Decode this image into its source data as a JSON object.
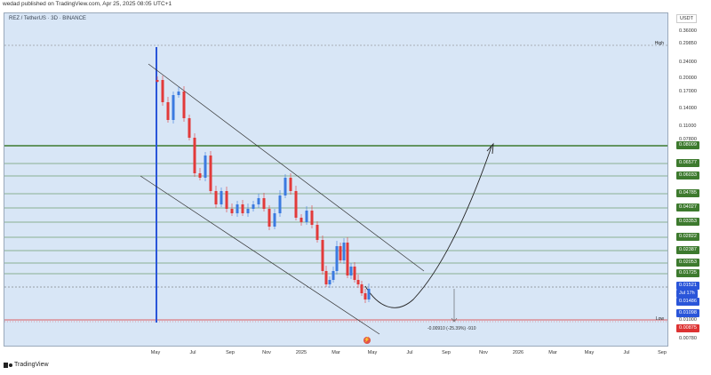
{
  "header": {
    "publish_line": "wedad published on TradingView.com, Apr 25, 2025 08:05 UTC+1"
  },
  "chart": {
    "symbol_line": "REZ / TetherUS · 3D · BINANCE",
    "currency": "USDT",
    "high_label": "High",
    "low_label": "Low",
    "measure_text": "-0.00910 (-25.39%) -910",
    "price_ticks": [
      "0.36000",
      "0.29850",
      "0.24000",
      "0.20000",
      "0.17000",
      "0.14000",
      "0.11000",
      "0.07800",
      "0.06577",
      "0.06033",
      "0.04785",
      "0.04027",
      "0.03353",
      "0.02822",
      "0.02387",
      "0.02053",
      "0.01725",
      "0.01521",
      "0.01486",
      "0.01098",
      "0.01000",
      "0.00875",
      "0.00780"
    ],
    "price_tags": {
      "p1": "0.08009",
      "p2": "0.06577",
      "p3": "0.06033",
      "p4": "0.04785",
      "p5": "0.04027",
      "p6": "0.03353",
      "p7": "0.02822",
      "p8": "0.02387",
      "p9": "0.02053",
      "p10": "0.01725",
      "p11": "0.01521",
      "p12": "0.01486",
      "p13": "0.01098",
      "p14": "0.01000",
      "p15": "0.00875",
      "countdown": "Jul 17h"
    },
    "time_labels": [
      "May",
      "Jul",
      "Sep",
      "Nov",
      "2025",
      "Mar",
      "May",
      "Jul",
      "Sep",
      "Nov",
      "2026",
      "Mar",
      "May",
      "Jul",
      "Sep"
    ],
    "colors": {
      "up": "#3b7ae0",
      "down": "#e23a3a",
      "level": "#3d7a2e",
      "panel": "#d8e6f6"
    }
  },
  "footer": {
    "brand": "TradingView"
  }
}
